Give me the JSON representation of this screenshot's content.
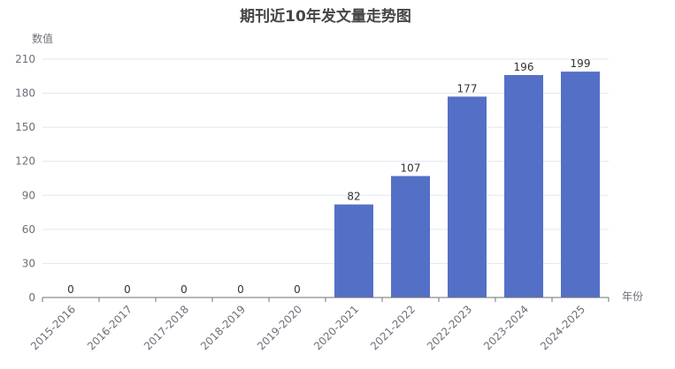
{
  "chart_data": {
    "type": "bar",
    "title": "期刊近10年发文量走势图",
    "xlabel": "年份",
    "ylabel": "数值",
    "categories": [
      "2015-2016",
      "2016-2017",
      "2017-2018",
      "2018-2019",
      "2019-2020",
      "2020-2021",
      "2021-2022",
      "2022-2023",
      "2023-2024",
      "2024-2025"
    ],
    "values": [
      0,
      0,
      0,
      0,
      0,
      82,
      107,
      177,
      196,
      199
    ],
    "ylim": [
      0,
      210
    ],
    "yticks": [
      0,
      30,
      60,
      90,
      120,
      150,
      180,
      210
    ],
    "grid": true,
    "bar_color": "#5470C6"
  }
}
